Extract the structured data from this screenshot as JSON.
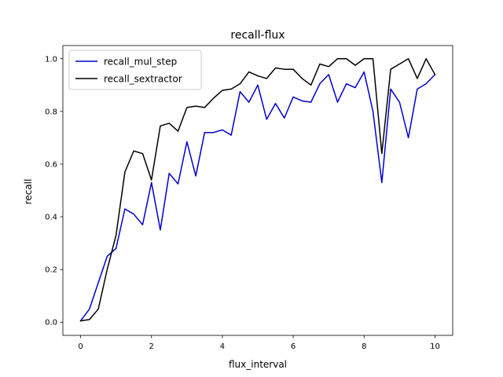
{
  "chart_data": {
    "type": "line",
    "title": "recall-flux",
    "xlabel": "flux_interval",
    "ylabel": "recall",
    "xlim": [
      -0.5,
      10.5
    ],
    "ylim": [
      -0.05,
      1.05
    ],
    "xticks": [
      0,
      2,
      4,
      6,
      8,
      10
    ],
    "yticks": [
      0.0,
      0.2,
      0.4,
      0.6,
      0.8,
      1.0
    ],
    "xtick_labels": [
      "0",
      "2",
      "4",
      "6",
      "8",
      "10"
    ],
    "ytick_labels": [
      "0.0",
      "0.2",
      "0.4",
      "0.6",
      "0.8",
      "1.0"
    ],
    "grid": false,
    "legend_position": "upper-left",
    "x": [
      0,
      0.25,
      0.5,
      0.75,
      1.0,
      1.25,
      1.5,
      1.75,
      2.0,
      2.25,
      2.5,
      2.75,
      3.0,
      3.25,
      3.5,
      3.75,
      4.0,
      4.25,
      4.5,
      4.75,
      5.0,
      5.25,
      5.5,
      5.75,
      6.0,
      6.25,
      6.5,
      6.75,
      7.0,
      7.25,
      7.5,
      7.75,
      8.0,
      8.25,
      8.5,
      8.75,
      9.0,
      9.25,
      9.5,
      9.75,
      10.0
    ],
    "series": [
      {
        "name": "recall_mul_step",
        "color": "#0000cc",
        "values": [
          0.005,
          0.05,
          0.15,
          0.25,
          0.28,
          0.43,
          0.41,
          0.37,
          0.53,
          0.35,
          0.565,
          0.525,
          0.685,
          0.555,
          0.72,
          0.72,
          0.73,
          0.71,
          0.875,
          0.835,
          0.9,
          0.77,
          0.83,
          0.775,
          0.855,
          0.84,
          0.835,
          0.905,
          0.94,
          0.835,
          0.905,
          0.89,
          0.95,
          0.8,
          0.53,
          0.885,
          0.835,
          0.7,
          0.885,
          0.905,
          0.94
        ]
      },
      {
        "name": "recall_sextractor",
        "color": "#000000",
        "values": [
          0.005,
          0.01,
          0.05,
          0.2,
          0.33,
          0.57,
          0.65,
          0.64,
          0.54,
          0.745,
          0.755,
          0.725,
          0.815,
          0.82,
          0.815,
          0.85,
          0.88,
          0.885,
          0.905,
          0.95,
          0.935,
          0.925,
          0.965,
          0.96,
          0.96,
          0.925,
          0.9,
          0.98,
          0.97,
          1.0,
          1.0,
          0.975,
          1.0,
          1.0,
          0.64,
          0.96,
          0.98,
          1.0,
          0.925,
          1.0,
          0.94
        ]
      }
    ]
  }
}
